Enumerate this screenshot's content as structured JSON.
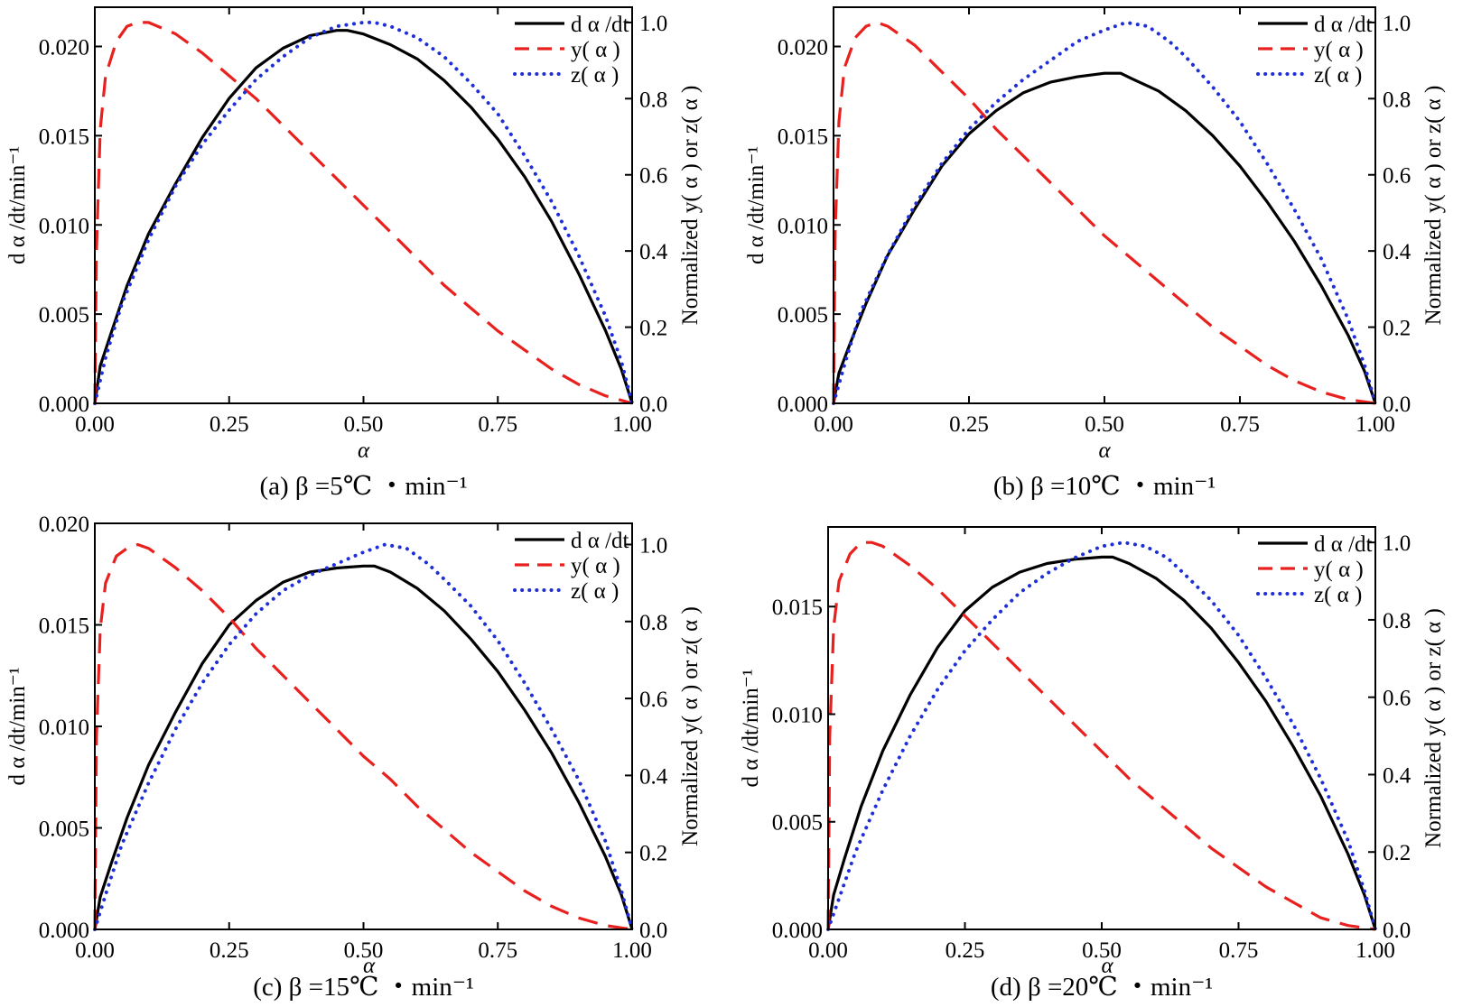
{
  "colors": {
    "rate": "#000000",
    "y": "#e8201e",
    "z": "#1f2fd6",
    "axis": "#000000"
  },
  "chart_data": [
    {
      "type": "line",
      "caption_prefix": "(a)",
      "caption": "β =5℃ ・min⁻¹",
      "xlabel": "α",
      "ylabel": "d α /dt/min⁻¹",
      "y2label": "Normalized y( α ) or z( α )",
      "xlim": [
        0,
        1
      ],
      "ylim": [
        0,
        0.0222
      ],
      "y2lim": [
        0,
        1.04
      ],
      "xticks": [
        "0.00",
        "0.25",
        "0.50",
        "0.75",
        "1.00"
      ],
      "yticks": [
        "0.000",
        "0.005",
        "0.010",
        "0.015",
        "0.020"
      ],
      "y2ticks": [
        "0.0",
        "0.2",
        "0.4",
        "0.6",
        "0.8",
        "1.0"
      ],
      "legend": [
        "d α /dt",
        "y( α )",
        "z( α )"
      ],
      "legend_position": "top-right",
      "series": [
        {
          "name": "d α /dt",
          "axis": "left",
          "x": [
            0,
            0.01,
            0.03,
            0.06,
            0.1,
            0.15,
            0.2,
            0.25,
            0.3,
            0.35,
            0.4,
            0.45,
            0.47,
            0.5,
            0.55,
            0.6,
            0.65,
            0.7,
            0.75,
            0.8,
            0.85,
            0.9,
            0.95,
            0.98,
            1.0
          ],
          "y": [
            0,
            0.0021,
            0.0039,
            0.0066,
            0.0095,
            0.0123,
            0.0149,
            0.0171,
            0.0188,
            0.0199,
            0.0206,
            0.0209,
            0.0209,
            0.0207,
            0.0201,
            0.0193,
            0.0181,
            0.0166,
            0.0148,
            0.0127,
            0.0102,
            0.0073,
            0.0041,
            0.0019,
            0
          ]
        },
        {
          "name": "y( α )",
          "axis": "right",
          "x": [
            0,
            0.003,
            0.01,
            0.02,
            0.04,
            0.06,
            0.08,
            0.1,
            0.15,
            0.2,
            0.25,
            0.3,
            0.35,
            0.4,
            0.45,
            0.5,
            0.55,
            0.6,
            0.65,
            0.7,
            0.75,
            0.8,
            0.85,
            0.9,
            0.95,
            1.0
          ],
          "y": [
            0,
            0.4,
            0.72,
            0.86,
            0.95,
            0.99,
            1.0,
            1.0,
            0.97,
            0.92,
            0.86,
            0.8,
            0.73,
            0.66,
            0.59,
            0.52,
            0.45,
            0.38,
            0.31,
            0.25,
            0.19,
            0.14,
            0.09,
            0.05,
            0.02,
            0
          ]
        },
        {
          "name": "z( α )",
          "axis": "right",
          "x": [
            0,
            0.02,
            0.05,
            0.1,
            0.15,
            0.2,
            0.25,
            0.3,
            0.35,
            0.4,
            0.45,
            0.5,
            0.52,
            0.55,
            0.6,
            0.65,
            0.7,
            0.75,
            0.8,
            0.85,
            0.9,
            0.95,
            0.98,
            1.0
          ],
          "y": [
            0,
            0.12,
            0.26,
            0.43,
            0.57,
            0.68,
            0.77,
            0.85,
            0.91,
            0.96,
            0.99,
            1.0,
            1.0,
            0.99,
            0.96,
            0.91,
            0.84,
            0.76,
            0.65,
            0.53,
            0.39,
            0.23,
            0.11,
            0
          ]
        }
      ]
    },
    {
      "type": "line",
      "caption_prefix": "(b)",
      "caption": "β =10℃ ・min⁻¹",
      "xlabel": "α",
      "ylabel": "d α /dt/min⁻¹",
      "y2label": "Normalized y( α ) or z( α )",
      "xlim": [
        0,
        1
      ],
      "ylim": [
        0,
        0.0222
      ],
      "y2lim": [
        0,
        1.04
      ],
      "xticks": [
        "0.00",
        "0.25",
        "0.50",
        "0.75",
        "1.00"
      ],
      "yticks": [
        "0.000",
        "0.005",
        "0.010",
        "0.015",
        "0.020"
      ],
      "y2ticks": [
        "0.0",
        "0.2",
        "0.4",
        "0.6",
        "0.8",
        "1.0"
      ],
      "legend": [
        "d α /dt",
        "y( α )",
        "z( α )"
      ],
      "legend_position": "top-right",
      "series": [
        {
          "name": "d α /dt",
          "axis": "left",
          "x": [
            0,
            0.01,
            0.03,
            0.06,
            0.1,
            0.15,
            0.2,
            0.25,
            0.3,
            0.35,
            0.4,
            0.45,
            0.5,
            0.53,
            0.55,
            0.6,
            0.65,
            0.7,
            0.75,
            0.8,
            0.85,
            0.9,
            0.95,
            0.98,
            1.0
          ],
          "y": [
            0,
            0.0017,
            0.0033,
            0.0056,
            0.0083,
            0.0109,
            0.0133,
            0.0151,
            0.0164,
            0.0174,
            0.018,
            0.0183,
            0.0185,
            0.0185,
            0.0182,
            0.0175,
            0.0164,
            0.015,
            0.0133,
            0.0113,
            0.0091,
            0.0066,
            0.0038,
            0.0018,
            0
          ]
        },
        {
          "name": "y( α )",
          "axis": "right",
          "x": [
            0,
            0.003,
            0.01,
            0.02,
            0.04,
            0.06,
            0.08,
            0.1,
            0.15,
            0.2,
            0.25,
            0.3,
            0.35,
            0.4,
            0.45,
            0.5,
            0.55,
            0.6,
            0.65,
            0.7,
            0.75,
            0.8,
            0.85,
            0.9,
            0.95,
            1.0
          ],
          "y": [
            0,
            0.45,
            0.74,
            0.88,
            0.96,
            0.99,
            1.0,
            0.99,
            0.94,
            0.87,
            0.8,
            0.72,
            0.65,
            0.58,
            0.51,
            0.44,
            0.38,
            0.32,
            0.26,
            0.2,
            0.15,
            0.1,
            0.06,
            0.03,
            0.01,
            0
          ]
        },
        {
          "name": "z( α )",
          "axis": "right",
          "x": [
            0,
            0.02,
            0.05,
            0.1,
            0.15,
            0.2,
            0.25,
            0.3,
            0.35,
            0.4,
            0.45,
            0.5,
            0.54,
            0.58,
            0.62,
            0.65,
            0.7,
            0.75,
            0.8,
            0.85,
            0.9,
            0.95,
            0.98,
            1.0
          ],
          "y": [
            0,
            0.1,
            0.24,
            0.39,
            0.52,
            0.63,
            0.72,
            0.79,
            0.85,
            0.9,
            0.95,
            0.98,
            1.0,
            0.99,
            0.95,
            0.91,
            0.83,
            0.74,
            0.63,
            0.51,
            0.38,
            0.22,
            0.1,
            0
          ]
        }
      ]
    },
    {
      "type": "line",
      "caption_prefix": "(c)",
      "caption": "β =15℃ ・min⁻¹",
      "xlabel": "α",
      "ylabel": "d α /dt/min⁻¹",
      "y2label": "Normalized y( α ) or z( α )",
      "xlim": [
        0,
        1
      ],
      "ylim": [
        0,
        0.02
      ],
      "y2lim": [
        0,
        1.055
      ],
      "xticks": [
        "0.00",
        "0.25",
        "0.50",
        "0.75",
        "1.00"
      ],
      "yticks": [
        "0.000",
        "0.005",
        "0.010",
        "0.015",
        "0.020"
      ],
      "y2ticks": [
        "0.0",
        "0.2",
        "0.4",
        "0.6",
        "0.8",
        "1.0"
      ],
      "legend": [
        "d α /dt",
        "y( α )",
        "z( α )"
      ],
      "legend_position": "top-right",
      "series": [
        {
          "name": "d α /dt",
          "axis": "left",
          "x": [
            0,
            0.01,
            0.03,
            0.06,
            0.1,
            0.15,
            0.2,
            0.25,
            0.3,
            0.35,
            0.4,
            0.45,
            0.5,
            0.52,
            0.55,
            0.6,
            0.65,
            0.7,
            0.75,
            0.8,
            0.85,
            0.9,
            0.95,
            0.98,
            1.0
          ],
          "y": [
            0,
            0.0016,
            0.0032,
            0.0055,
            0.0081,
            0.0107,
            0.0131,
            0.015,
            0.0162,
            0.0171,
            0.0176,
            0.0178,
            0.0179,
            0.0179,
            0.0176,
            0.0168,
            0.0157,
            0.0143,
            0.0127,
            0.0108,
            0.0087,
            0.0063,
            0.0036,
            0.0017,
            0
          ]
        },
        {
          "name": "y( α )",
          "axis": "right",
          "x": [
            0,
            0.003,
            0.01,
            0.02,
            0.04,
            0.06,
            0.08,
            0.1,
            0.15,
            0.2,
            0.25,
            0.3,
            0.35,
            0.4,
            0.45,
            0.5,
            0.55,
            0.6,
            0.65,
            0.7,
            0.75,
            0.8,
            0.85,
            0.9,
            0.95,
            1.0
          ],
          "y": [
            0,
            0.5,
            0.78,
            0.9,
            0.97,
            0.99,
            1.0,
            0.99,
            0.94,
            0.88,
            0.81,
            0.73,
            0.66,
            0.59,
            0.52,
            0.45,
            0.39,
            0.32,
            0.26,
            0.2,
            0.15,
            0.1,
            0.06,
            0.03,
            0.01,
            0
          ]
        },
        {
          "name": "z( α )",
          "axis": "right",
          "x": [
            0,
            0.02,
            0.05,
            0.1,
            0.15,
            0.2,
            0.25,
            0.3,
            0.35,
            0.4,
            0.45,
            0.5,
            0.54,
            0.58,
            0.62,
            0.65,
            0.7,
            0.75,
            0.8,
            0.85,
            0.9,
            0.95,
            0.98,
            1.0
          ],
          "y": [
            0,
            0.09,
            0.22,
            0.38,
            0.52,
            0.64,
            0.74,
            0.82,
            0.88,
            0.92,
            0.95,
            0.98,
            1.0,
            0.99,
            0.95,
            0.91,
            0.84,
            0.75,
            0.64,
            0.52,
            0.39,
            0.23,
            0.1,
            0
          ]
        }
      ]
    },
    {
      "type": "line",
      "caption_prefix": "(d)",
      "caption": "β =20℃ ・min⁻¹",
      "xlabel": "α",
      "ylabel": "d α /dt/min⁻¹",
      "y2label": "Normalized y( α ) or z( α )",
      "xlim": [
        0,
        1
      ],
      "ylim": [
        0,
        0.0187
      ],
      "y2lim": [
        0,
        1.04
      ],
      "xticks": [
        "0.00",
        "0.25",
        "0.50",
        "0.75",
        "1.00"
      ],
      "yticks": [
        "0.000",
        "0.005",
        "0.010",
        "0.015"
      ],
      "y2ticks": [
        "0.0",
        "0.2",
        "0.4",
        "0.6",
        "0.8",
        "1.0"
      ],
      "legend": [
        "d α /dt",
        "y( α )",
        "z( α )"
      ],
      "legend_position": "top-right",
      "series": [
        {
          "name": "d α /dt",
          "axis": "left",
          "x": [
            0,
            0.01,
            0.03,
            0.06,
            0.1,
            0.15,
            0.2,
            0.25,
            0.3,
            0.35,
            0.4,
            0.45,
            0.5,
            0.52,
            0.55,
            0.6,
            0.65,
            0.7,
            0.75,
            0.8,
            0.85,
            0.9,
            0.95,
            0.98,
            1.0
          ],
          "y": [
            0,
            0.0016,
            0.0033,
            0.0057,
            0.0083,
            0.0109,
            0.0131,
            0.0148,
            0.0159,
            0.0166,
            0.017,
            0.0172,
            0.0173,
            0.0173,
            0.017,
            0.0163,
            0.0153,
            0.014,
            0.0124,
            0.0106,
            0.0085,
            0.0062,
            0.0035,
            0.0016,
            0
          ]
        },
        {
          "name": "y( α )",
          "axis": "right",
          "x": [
            0,
            0.003,
            0.01,
            0.02,
            0.04,
            0.06,
            0.08,
            0.1,
            0.15,
            0.2,
            0.25,
            0.3,
            0.35,
            0.4,
            0.45,
            0.5,
            0.55,
            0.6,
            0.65,
            0.7,
            0.75,
            0.8,
            0.85,
            0.9,
            0.95,
            1.0
          ],
          "y": [
            0,
            0.5,
            0.78,
            0.9,
            0.97,
            1.0,
            1.0,
            0.99,
            0.94,
            0.88,
            0.81,
            0.74,
            0.67,
            0.6,
            0.53,
            0.46,
            0.39,
            0.33,
            0.27,
            0.21,
            0.16,
            0.11,
            0.07,
            0.03,
            0.01,
            0
          ]
        },
        {
          "name": "z( α )",
          "axis": "right",
          "x": [
            0,
            0.02,
            0.05,
            0.1,
            0.15,
            0.2,
            0.25,
            0.3,
            0.35,
            0.4,
            0.45,
            0.5,
            0.54,
            0.58,
            0.62,
            0.65,
            0.7,
            0.75,
            0.8,
            0.85,
            0.9,
            0.95,
            0.98,
            1.0
          ],
          "y": [
            0,
            0.08,
            0.2,
            0.36,
            0.5,
            0.62,
            0.72,
            0.8,
            0.87,
            0.92,
            0.96,
            0.99,
            1.0,
            0.99,
            0.96,
            0.92,
            0.85,
            0.76,
            0.65,
            0.53,
            0.39,
            0.23,
            0.1,
            0
          ]
        }
      ]
    }
  ]
}
